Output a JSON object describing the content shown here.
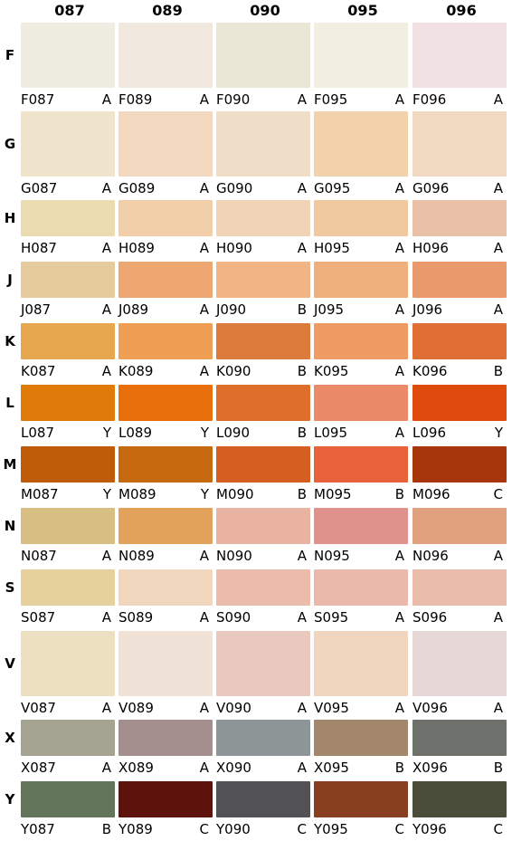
{
  "columns": [
    "087",
    "089",
    "090",
    "095",
    "096"
  ],
  "rows": [
    {
      "label": "F",
      "cells": [
        {
          "code": "F087",
          "grade": "A",
          "color": "#efece1"
        },
        {
          "code": "F089",
          "grade": "A",
          "color": "#f1e9df"
        },
        {
          "code": "F090",
          "grade": "A",
          "color": "#ebe7d6"
        },
        {
          "code": "F095",
          "grade": "A",
          "color": "#f2efe2"
        },
        {
          "code": "F096",
          "grade": "A",
          "color": "#f1e1e2"
        }
      ]
    },
    {
      "label": "G",
      "cells": [
        {
          "code": "G087",
          "grade": "A",
          "color": "#f0e4cd"
        },
        {
          "code": "G089",
          "grade": "A",
          "color": "#f2d8bf"
        },
        {
          "code": "G090",
          "grade": "A",
          "color": "#f0dfc8"
        },
        {
          "code": "G095",
          "grade": "A",
          "color": "#f2d2ab"
        },
        {
          "code": "G096",
          "grade": "A",
          "color": "#f1d8c0"
        }
      ]
    },
    {
      "label": "H",
      "cells": [
        {
          "code": "H087",
          "grade": "A",
          "color": "#ecdcb2"
        },
        {
          "code": "H089",
          "grade": "A",
          "color": "#f2cfa8"
        },
        {
          "code": "H090",
          "grade": "A",
          "color": "#f1d3b5"
        },
        {
          "code": "H095",
          "grade": "A",
          "color": "#f1c9a1"
        },
        {
          "code": "H096",
          "grade": "A",
          "color": "#e8c1a7"
        }
      ]
    },
    {
      "label": "J",
      "cells": [
        {
          "code": "J087",
          "grade": "A",
          "color": "#e6cc9d"
        },
        {
          "code": "J089",
          "grade": "A",
          "color": "#eea771"
        },
        {
          "code": "J090",
          "grade": "B",
          "color": "#f1b585"
        },
        {
          "code": "J095",
          "grade": "A",
          "color": "#efb07e"
        },
        {
          "code": "J096",
          "grade": "A",
          "color": "#e99a6c"
        }
      ]
    },
    {
      "label": "K",
      "cells": [
        {
          "code": "K087",
          "grade": "A",
          "color": "#e6a74f"
        },
        {
          "code": "K089",
          "grade": "A",
          "color": "#ef9f54"
        },
        {
          "code": "K090",
          "grade": "B",
          "color": "#dd7b3d"
        },
        {
          "code": "K095",
          "grade": "A",
          "color": "#ee9c63"
        },
        {
          "code": "K096",
          "grade": "B",
          "color": "#e06f35"
        }
      ]
    },
    {
      "label": "L",
      "cells": [
        {
          "code": "L087",
          "grade": "Y",
          "color": "#e07b0a"
        },
        {
          "code": "L089",
          "grade": "Y",
          "color": "#e86f0c"
        },
        {
          "code": "L090",
          "grade": "B",
          "color": "#df6e2a"
        },
        {
          "code": "L095",
          "grade": "A",
          "color": "#eb8a68"
        },
        {
          "code": "L096",
          "grade": "Y",
          "color": "#df4b0d"
        }
      ]
    },
    {
      "label": "M",
      "cells": [
        {
          "code": "M087",
          "grade": "Y",
          "color": "#bf5c0a"
        },
        {
          "code": "M089",
          "grade": "Y",
          "color": "#c7690e"
        },
        {
          "code": "M090",
          "grade": "B",
          "color": "#d55f20"
        },
        {
          "code": "M095",
          "grade": "B",
          "color": "#e7623a"
        },
        {
          "code": "M096",
          "grade": "C",
          "color": "#a7360b"
        }
      ]
    },
    {
      "label": "N",
      "cells": [
        {
          "code": "N087",
          "grade": "A",
          "color": "#d8be82"
        },
        {
          "code": "N089",
          "grade": "A",
          "color": "#e3a25b"
        },
        {
          "code": "N090",
          "grade": "A",
          "color": "#e8b3a1"
        },
        {
          "code": "N095",
          "grade": "A",
          "color": "#df928b"
        },
        {
          "code": "N096",
          "grade": "A",
          "color": "#e0a17e"
        }
      ]
    },
    {
      "label": "S",
      "cells": [
        {
          "code": "S087",
          "grade": "A",
          "color": "#e6d19d"
        },
        {
          "code": "S089",
          "grade": "A",
          "color": "#f0d7bd"
        },
        {
          "code": "S090",
          "grade": "A",
          "color": "#ebbcac"
        },
        {
          "code": "S095",
          "grade": "A",
          "color": "#ebb9ac"
        },
        {
          "code": "S096",
          "grade": "A",
          "color": "#e9bbab"
        }
      ]
    },
    {
      "label": "V",
      "cells": [
        {
          "code": "V087",
          "grade": "A",
          "color": "#ede0c0"
        },
        {
          "code": "V089",
          "grade": "A",
          "color": "#f0e2d6"
        },
        {
          "code": "V090",
          "grade": "A",
          "color": "#ebc8be"
        },
        {
          "code": "V095",
          "grade": "A",
          "color": "#f0d5bf"
        },
        {
          "code": "V096",
          "grade": "A",
          "color": "#e5d8d6"
        }
      ]
    },
    {
      "label": "X",
      "cells": [
        {
          "code": "X087",
          "grade": "A",
          "color": "#a5a391"
        },
        {
          "code": "X089",
          "grade": "A",
          "color": "#a48f8e"
        },
        {
          "code": "X090",
          "grade": "A",
          "color": "#8e9597"
        },
        {
          "code": "X095",
          "grade": "B",
          "color": "#a2876c"
        },
        {
          "code": "X096",
          "grade": "B",
          "color": "#6e706b"
        }
      ]
    },
    {
      "label": "Y",
      "cells": [
        {
          "code": "Y087",
          "grade": "B",
          "color": "#637659"
        },
        {
          "code": "Y089",
          "grade": "C",
          "color": "#5e120c"
        },
        {
          "code": "Y090",
          "grade": "C",
          "color": "#525254"
        },
        {
          "code": "Y095",
          "grade": "C",
          "color": "#873f20"
        },
        {
          "code": "Y096",
          "grade": "C",
          "color": "#494d3a"
        }
      ]
    }
  ]
}
